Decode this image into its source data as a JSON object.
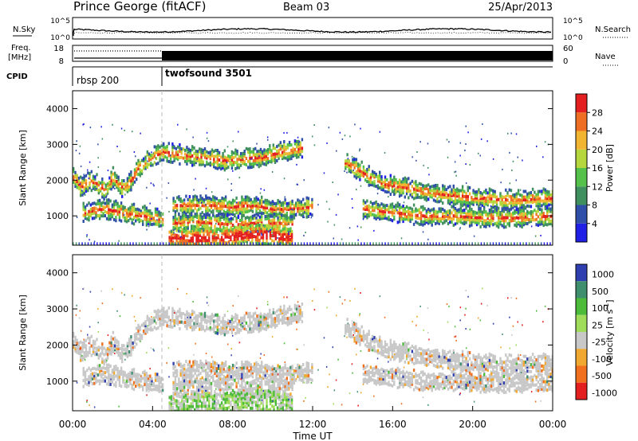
{
  "header": {
    "station": "Prince George (fitACF)",
    "beam": "Beam 03",
    "date": "25/Apr/2013"
  },
  "status_panels": {
    "nsky_label": "N.Sky",
    "nsky_tick_top": "10^5",
    "nsky_tick_bottom": "10^0",
    "nsearch_tick_top": "10^5",
    "nsearch_tick_bottom": "10^0",
    "nsearch_label": "N.Search",
    "freq_label_line1": "Freq.",
    "freq_label_line2": "[MHz]",
    "freq_tick_top": "18",
    "freq_tick_bottom": "8",
    "nave_tick_top": "60",
    "nave_tick_bottom": "0",
    "nave_label": "Nave",
    "cpid_label": "CPID",
    "cpid_1": "rbsp 200",
    "cpid_2": "twofsound 3501"
  },
  "chart_data": [
    {
      "type": "heatmap",
      "panel": "power",
      "ylabel": "Slant Range [km]",
      "yticks": [
        "1000",
        "2000",
        "3000",
        "4000"
      ],
      "ylim": [
        180,
        4500
      ],
      "xlim": [
        0,
        24
      ],
      "colorbar_label": "Power [dB]",
      "colorbar_ticks": [
        "4",
        "8",
        "12",
        "16",
        "20",
        "24",
        "28"
      ],
      "colors": [
        "#1f1fe6",
        "#2f4fa8",
        "#3f8f5f",
        "#54c24a",
        "#b5d63c",
        "#f2b531",
        "#ee6f24",
        "#e41f1f"
      ],
      "bands": [
        {
          "x": [
            0,
            0.4,
            0.8,
            1.2,
            1.6,
            2.0,
            2.4,
            2.8,
            3.2,
            3.6,
            4.0,
            4.5
          ],
          "y": [
            2100,
            1800,
            2000,
            1900,
            1700,
            2100,
            1800,
            1900,
            2300,
            2500,
            2650,
            2800
          ]
        },
        {
          "x": [
            4.5,
            5.5,
            6.5,
            7.5,
            8.5,
            9.5,
            10.5,
            11.5
          ],
          "y": [
            2800,
            2700,
            2650,
            2550,
            2600,
            2650,
            2800,
            2900
          ]
        },
        {
          "x": [
            0.5,
            1.5,
            2.5,
            3.5,
            4.5
          ],
          "y": [
            1100,
            1200,
            1100,
            1000,
            900
          ]
        },
        {
          "x": [
            5,
            6,
            7,
            8,
            9,
            10,
            11,
            12
          ],
          "y": [
            1300,
            1300,
            1300,
            1250,
            1300,
            1200,
            1200,
            1250
          ]
        },
        {
          "x": [
            5,
            6,
            7,
            8,
            9,
            10,
            11
          ],
          "y": [
            800,
            850,
            800,
            750,
            800,
            800,
            780
          ]
        },
        {
          "x": [
            4.8,
            6,
            7,
            8,
            9,
            10,
            11
          ],
          "y": [
            400,
            380,
            400,
            420,
            500,
            450,
            400
          ]
        },
        {
          "x": [
            13.6,
            14.5,
            15.5,
            16.5,
            17.5,
            18.5,
            19.5,
            20.5,
            21.5,
            22.5,
            23.5,
            24
          ],
          "y": [
            2500,
            2200,
            1900,
            1800,
            1700,
            1600,
            1550,
            1500,
            1450,
            1450,
            1500,
            1500
          ]
        },
        {
          "x": [
            14.5,
            16,
            17.5,
            19,
            20.5,
            22,
            24
          ],
          "y": [
            1200,
            1100,
            1000,
            1000,
            950,
            950,
            1000
          ]
        }
      ]
    },
    {
      "type": "heatmap",
      "panel": "velocity",
      "ylabel": "Slant Range [km]",
      "yticks": [
        "1000",
        "2000",
        "3000",
        "4000"
      ],
      "ylim": [
        180,
        4500
      ],
      "xlim": [
        0,
        24
      ],
      "xticks": [
        "00:00",
        "04:00",
        "08:00",
        "12:00",
        "16:00",
        "20:00",
        "00:00"
      ],
      "xlabel": "Time UT",
      "colorbar_label": "Velocity [m s^-1]",
      "colorbar_ticks": [
        "1000",
        "500",
        "100",
        "25",
        "-25",
        "-100",
        "-500",
        "-1000"
      ],
      "colors": [
        "#2f3fb0",
        "#3f8f6f",
        "#4cbb3a",
        "#9edc5a",
        "#c8c8c8",
        "#f0a830",
        "#f07020",
        "#e41f1f"
      ]
    }
  ]
}
